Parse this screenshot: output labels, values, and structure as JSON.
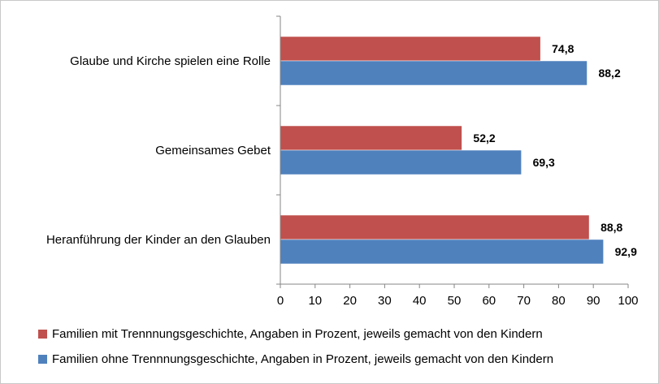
{
  "chart_data": {
    "type": "bar",
    "orientation": "horizontal",
    "categories": [
      "Glaube und Kirche spielen eine Rolle",
      "Gemeinsames Gebet",
      "Heranführung der Kinder an den Glauben"
    ],
    "series": [
      {
        "name": "Familien mit Trennnungsgeschichte, Angaben in Prozent, jeweils gemacht von den Kindern",
        "color": "#C0504D",
        "values": [
          74.8,
          52.2,
          88.8
        ],
        "labels": [
          "74,8",
          "52,2",
          "88,8"
        ]
      },
      {
        "name": "Familien ohne Trennnungsgeschichte, Angaben in Prozent, jeweils gemacht von den Kindern",
        "color": "#4F81BD",
        "values": [
          88.2,
          69.3,
          92.9
        ],
        "labels": [
          "88,2",
          "69,3",
          "92,9"
        ]
      }
    ],
    "xlim": [
      0,
      100
    ],
    "xticks": [
      0,
      10,
      20,
      30,
      40,
      50,
      60,
      70,
      80,
      90,
      100
    ],
    "grid": false,
    "legend_position": "bottom"
  }
}
